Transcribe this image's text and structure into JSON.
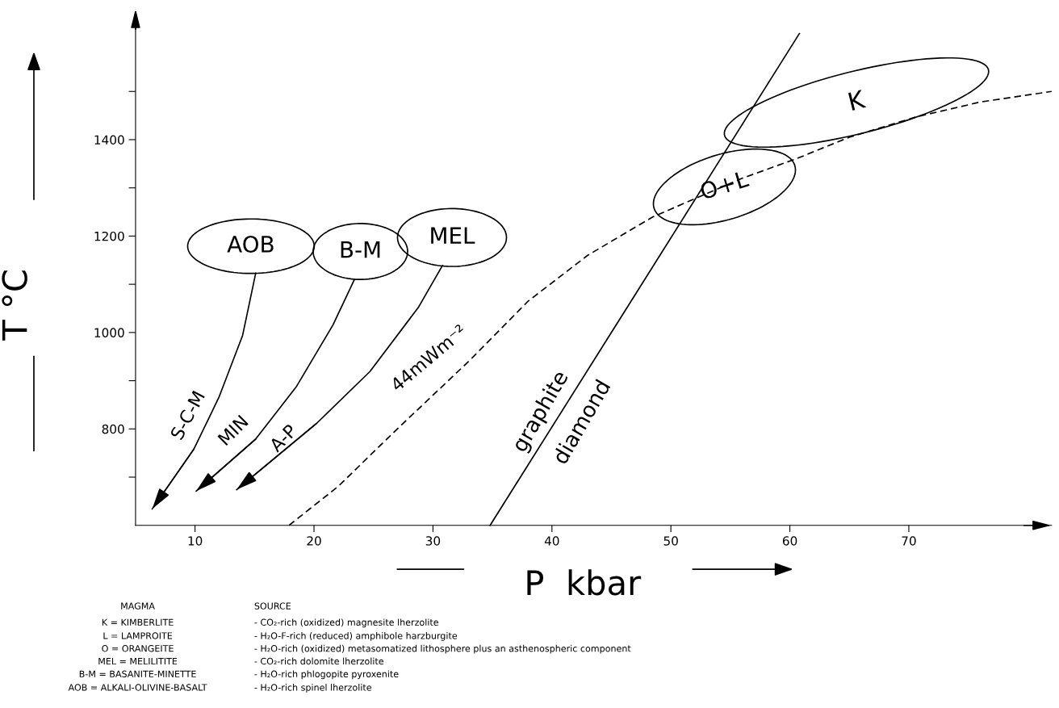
{
  "chart_data": {
    "type": "line",
    "xlabel": "P  kbar",
    "ylabel": "T °C",
    "xlim": [
      5,
      82
    ],
    "ylim": [
      600,
      1650
    ],
    "xticks": [
      10,
      20,
      30,
      40,
      50,
      60,
      70
    ],
    "yticks": [
      {
        "value": 700,
        "label": null
      },
      800,
      {
        "value": 900,
        "label": null
      },
      1000,
      {
        "value": 1100,
        "label": null
      },
      1200,
      {
        "value": 1300,
        "label": null
      },
      1400,
      {
        "value": 1500,
        "label": null
      }
    ],
    "grid": false,
    "legend": false,
    "series": [
      {
        "color": "#000000",
        "line_style": "solid",
        "x": [
          34.8,
          60.8
        ],
        "values": [
          600,
          1620
        ]
      },
      {
        "color": "#000000",
        "line_style": "dashed",
        "x": [
          17.9,
          22,
          27,
          33,
          38,
          43,
          48.5,
          56,
          60.5,
          65,
          70.6,
          76,
          82
        ],
        "values": [
          600,
          680,
          800,
          940,
          1065,
          1160,
          1240,
          1320,
          1360,
          1405,
          1447,
          1478,
          1500
        ]
      },
      {
        "color": "#000000",
        "line_style": "solid",
        "x": [
          15.1,
          14.0,
          12.0,
          9.9,
          6.4
        ],
        "values": [
          1123,
          994,
          865,
          758,
          634
        ]
      },
      {
        "color": "#000000",
        "line_style": "solid",
        "x": [
          23.4,
          21.6,
          18.5,
          15.1,
          10.1
        ],
        "values": [
          1110,
          1016,
          887,
          779,
          671
        ]
      },
      {
        "color": "#000000",
        "line_style": "solid",
        "x": [
          30.8,
          28.8,
          24.7,
          20.2,
          13.5
        ],
        "values": [
          1139,
          1053,
          919,
          811,
          674
        ]
      }
    ],
    "annotations": [
      "AOB",
      "B-M",
      "MEL",
      "O+L",
      "K",
      {
        "text": "S-C-M",
        "x": 11.3,
        "y": 827
      },
      {
        "text": "MIN",
        "x": 15.6,
        "y": 795
      },
      {
        "text": "A-P",
        "x": 18.6,
        "y": 779
      },
      "44mWm⁻²",
      "graphite",
      "diamond",
      "MAGMA",
      "SOURCE",
      "K = KIMBERLITE",
      "- CO₂-rich (oxidized) magnesite lherzolite",
      "L = LAMPROITE",
      "- H₂O-F-rich (reduced) amphibole harzburgite",
      "O = ORANGEITE",
      "- H₂O-rich (oxidized) metasomatized lithosphere plus an asthenospheric component",
      "MEL = MELILITITE",
      "- CO₂-rich dolomite lherzolite",
      "B-M = BASANITE-MINETTE",
      "- H₂O-rich phlogopite pyroxenite",
      "AOB = ALKALI-OLIVINE-BASALT",
      "- H₂O-rich spinel lherzolite"
    ]
  }
}
